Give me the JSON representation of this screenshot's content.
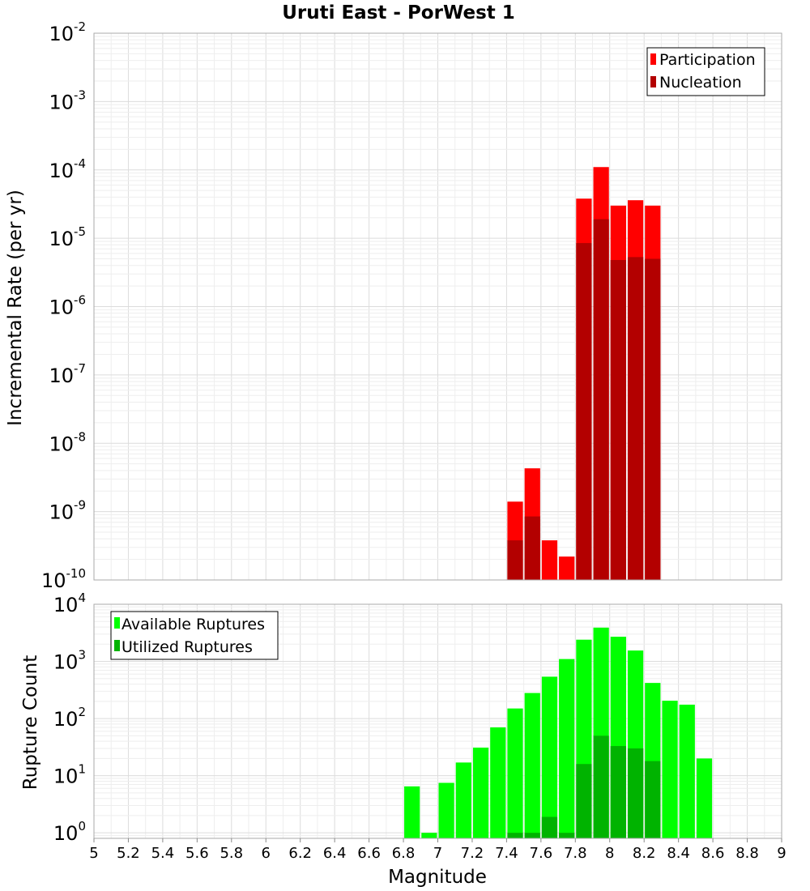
{
  "chart_data": [
    {
      "type": "bar",
      "title": "Uruti East - PorWest 1",
      "xlabel": "",
      "ylabel": "Incremental Rate (per yr)",
      "yscale": "log",
      "ylim": [
        1e-10,
        0.01
      ],
      "xlim": [
        5,
        9
      ],
      "bin_width": 0.1,
      "legend_position": "top-right",
      "grid": true,
      "series": [
        {
          "name": "Participation",
          "color": "#ff0000",
          "x": [
            7.45,
            7.55,
            7.65,
            7.75,
            7.85,
            7.95,
            8.05,
            8.15,
            8.25
          ],
          "values": [
            1.4e-09,
            4.3e-09,
            3.8e-10,
            2.2e-10,
            3.8e-05,
            0.00011,
            3e-05,
            3.6e-05,
            3e-05
          ]
        },
        {
          "name": "Nucleation",
          "color": "#b30000",
          "x": [
            7.45,
            7.55,
            7.65,
            7.75,
            7.85,
            7.95,
            8.05,
            8.15,
            8.25
          ],
          "values": [
            3.8e-10,
            8.5e-10,
            null,
            null,
            8.5e-06,
            1.9e-05,
            4.8e-06,
            5.3e-06,
            5e-06
          ]
        }
      ]
    },
    {
      "type": "bar",
      "title": "",
      "xlabel": "Magnitude",
      "ylabel": "Rupture Count",
      "yscale": "log",
      "ylim": [
        0.8,
        10000
      ],
      "xlim": [
        5,
        9
      ],
      "bin_width": 0.1,
      "legend_position": "top-left",
      "grid": true,
      "series": [
        {
          "name": "Available Ruptures",
          "color": "#00ff00",
          "x": [
            6.85,
            6.95,
            7.05,
            7.15,
            7.25,
            7.35,
            7.45,
            7.55,
            7.65,
            7.75,
            7.85,
            7.95,
            8.05,
            8.15,
            8.25,
            8.35,
            8.45,
            8.55
          ],
          "values": [
            6.5,
            1,
            7.5,
            17,
            31,
            70,
            150,
            280,
            540,
            1100,
            2400,
            3900,
            2700,
            1550,
            420,
            205,
            175,
            20
          ]
        },
        {
          "name": "Utilized Ruptures",
          "color": "#00b300",
          "x": [
            7.45,
            7.55,
            7.65,
            7.75,
            7.85,
            7.95,
            8.05,
            8.15,
            8.25
          ],
          "values": [
            1,
            1,
            1.9,
            1,
            16,
            50,
            33,
            30,
            18
          ]
        }
      ]
    }
  ],
  "x_ticks": [
    "5",
    "5.2",
    "5.4",
    "5.6",
    "5.8",
    "6",
    "6.2",
    "6.4",
    "6.6",
    "6.8",
    "7",
    "7.2",
    "7.4",
    "7.6",
    "7.8",
    "8",
    "8.2",
    "8.4",
    "8.6",
    "8.8",
    "9"
  ],
  "top_y_ticks": [
    {
      "base": "10",
      "exp": "-10"
    },
    {
      "base": "10",
      "exp": "-9"
    },
    {
      "base": "10",
      "exp": "-8"
    },
    {
      "base": "10",
      "exp": "-7"
    },
    {
      "base": "10",
      "exp": "-6"
    },
    {
      "base": "10",
      "exp": "-5"
    },
    {
      "base": "10",
      "exp": "-4"
    },
    {
      "base": "10",
      "exp": "-3"
    },
    {
      "base": "10",
      "exp": "-2"
    }
  ],
  "bottom_y_ticks": [
    {
      "base": "10",
      "exp": "0"
    },
    {
      "base": "10",
      "exp": "1"
    },
    {
      "base": "10",
      "exp": "2"
    },
    {
      "base": "10",
      "exp": "3"
    },
    {
      "base": "10",
      "exp": "4"
    }
  ]
}
